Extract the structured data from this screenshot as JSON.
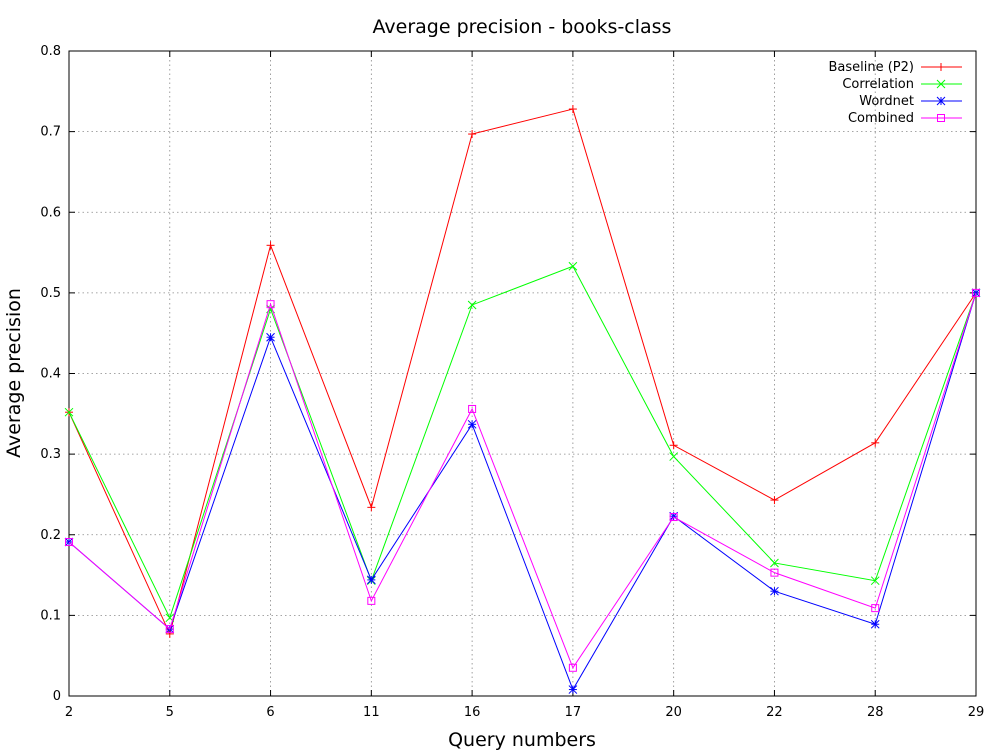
{
  "chart_data": {
    "type": "line",
    "title": "Average precision - books-class",
    "xlabel": "Query numbers",
    "ylabel": "Average precision",
    "categories": [
      "2",
      "5",
      "6",
      "11",
      "16",
      "17",
      "20",
      "22",
      "28",
      "29"
    ],
    "ylim": [
      0,
      0.8
    ],
    "yticks": [
      "0",
      "0.1",
      "0.2",
      "0.3",
      "0.4",
      "0.5",
      "0.6",
      "0.7",
      "0.8"
    ],
    "grid": true,
    "legend_position": "top-right",
    "series": [
      {
        "name": "Baseline (P2)",
        "color": "#ff0000",
        "marker": "plus",
        "values": [
          0.352,
          0.077,
          0.559,
          0.234,
          0.697,
          0.728,
          0.311,
          0.243,
          0.314,
          0.5
        ]
      },
      {
        "name": "Correlation",
        "color": "#00ff00",
        "marker": "cross",
        "values": [
          0.352,
          0.097,
          0.48,
          0.143,
          0.485,
          0.533,
          0.297,
          0.165,
          0.143,
          0.5
        ]
      },
      {
        "name": "Wordnet",
        "color": "#0000ff",
        "marker": "star",
        "values": [
          0.191,
          0.083,
          0.445,
          0.144,
          0.337,
          0.008,
          0.223,
          0.13,
          0.089,
          0.5
        ]
      },
      {
        "name": "Combined",
        "color": "#ff00ff",
        "marker": "square",
        "values": [
          0.191,
          0.083,
          0.486,
          0.118,
          0.356,
          0.035,
          0.222,
          0.153,
          0.109,
          0.5
        ]
      }
    ]
  }
}
